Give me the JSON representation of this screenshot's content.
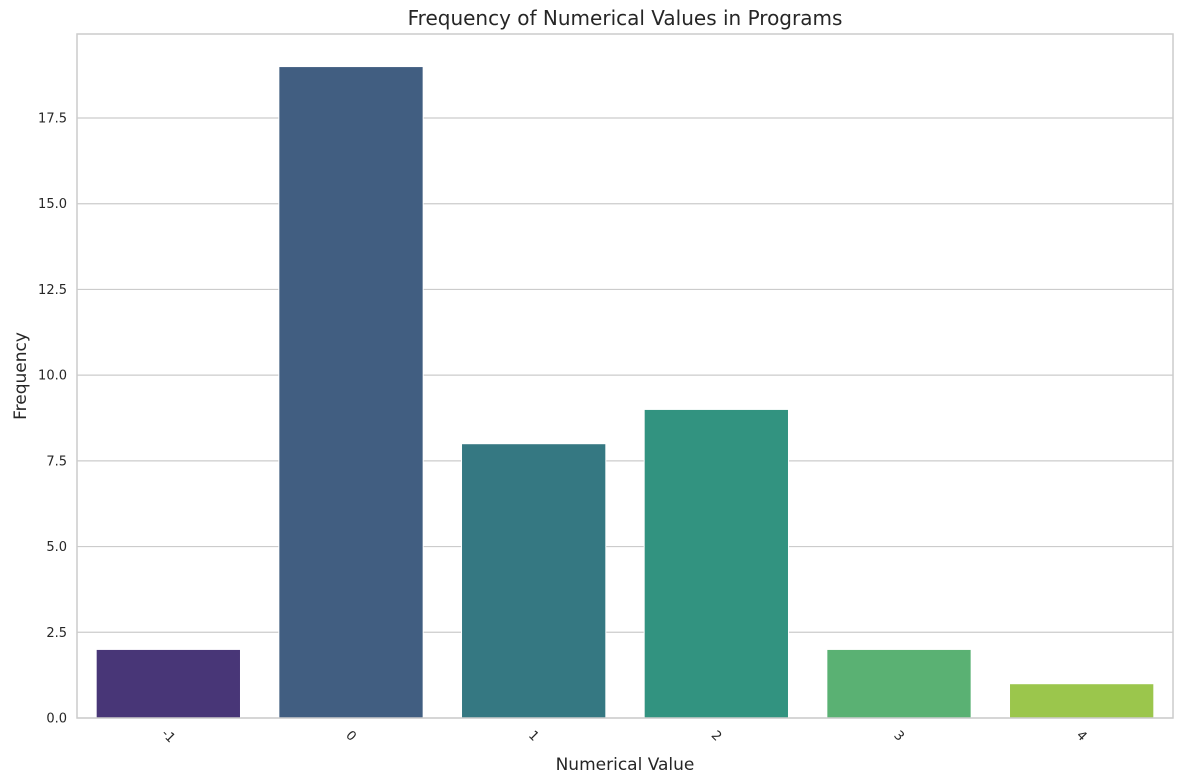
{
  "chart_data": {
    "type": "bar",
    "title": "Frequency of Numerical Values in Programs",
    "xlabel": "Numerical Value",
    "ylabel": "Frequency",
    "categories": [
      "-1",
      "0",
      "1",
      "2",
      "3",
      "4"
    ],
    "values": [
      2,
      19,
      8,
      9,
      2,
      1
    ],
    "colors": [
      "#483677",
      "#415e81",
      "#357882",
      "#329380",
      "#5ab173",
      "#9bc64c"
    ],
    "ylim": [
      0,
      19.95
    ],
    "yticks": [
      0.0,
      2.5,
      5.0,
      7.5,
      10.0,
      12.5,
      15.0,
      17.5
    ],
    "ytick_labels": [
      "0.0",
      "2.5",
      "5.0",
      "7.5",
      "10.0",
      "12.5",
      "15.0",
      "17.5"
    ],
    "grid": "horizontal",
    "xtick_rotation": "45deg"
  }
}
